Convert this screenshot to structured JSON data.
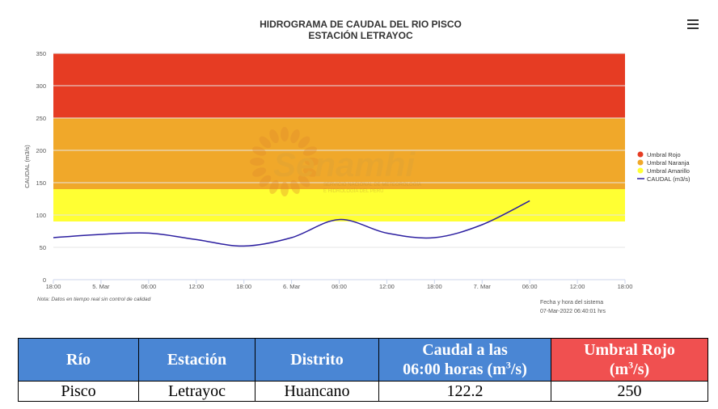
{
  "chart_data": {
    "type": "line",
    "title": "HIDROGRAMA DE CAUDAL DEL RIO PISCO",
    "subtitle": "ESTACIÓN LETRAYOC",
    "ylabel": "CAUDAL (m3/s)",
    "ylim": [
      0,
      350
    ],
    "yticks": [
      0,
      50,
      100,
      150,
      200,
      250,
      300,
      350
    ],
    "xlim": [
      "2022-03-04T18:00",
      "2022-03-07T18:00"
    ],
    "xtick_labels": [
      "18:00",
      "5. Mar",
      "06:00",
      "12:00",
      "18:00",
      "6. Mar",
      "06:00",
      "12:00",
      "18:00",
      "7. Mar",
      "06:00",
      "12:00",
      "18:00"
    ],
    "bands": [
      {
        "name": "Umbral Rojo",
        "from": 250,
        "to": 350,
        "color": "#e63c23"
      },
      {
        "name": "Umbral Naranja",
        "from": 140,
        "to": 250,
        "color": "#f0a82a"
      },
      {
        "name": "Umbral Amarillo",
        "from": 90,
        "to": 140,
        "color": "#ffff33"
      }
    ],
    "band_x_range": [
      "2022-03-04T18:00",
      "2022-03-07T18:00"
    ],
    "series": [
      {
        "name": "CAUDAL (m3/s)",
        "color": "#2c1fa0",
        "x": [
          "2022-03-04T18:00",
          "2022-03-05T00:00",
          "2022-03-05T06:00",
          "2022-03-05T12:00",
          "2022-03-05T18:00",
          "2022-03-06T00:00",
          "2022-03-06T06:00",
          "2022-03-06T12:00",
          "2022-03-06T18:00",
          "2022-03-07T00:00",
          "2022-03-07T06:00"
        ],
        "y": [
          65,
          70,
          72,
          62,
          52,
          65,
          93,
          72,
          65,
          85,
          122
        ]
      }
    ],
    "legend_position": "right",
    "grid": true,
    "watermark_text": "Senamhi",
    "watermark_subtext": [
      "SERVICIO NACIONAL DE METEOROLOGÍA",
      "E HIDROLOGÍA DEL PERÚ"
    ],
    "note": "Nota: Datos en tiempo real sin control de calidad",
    "footer_label": "Fecha y hora del sistema",
    "footer_value": "07-Mar-2022 06:40:01 hrs"
  },
  "table": {
    "headers": [
      "Río",
      "Estación",
      "Distrito",
      "Caudal a las 06:00 horas (m³/s)",
      "Umbral Rojo (m³/s)"
    ],
    "row": [
      "Pisco",
      "Letrayoc",
      "Huancano",
      "122.2",
      "250"
    ]
  },
  "menu_icon": "hamburger-menu-icon"
}
